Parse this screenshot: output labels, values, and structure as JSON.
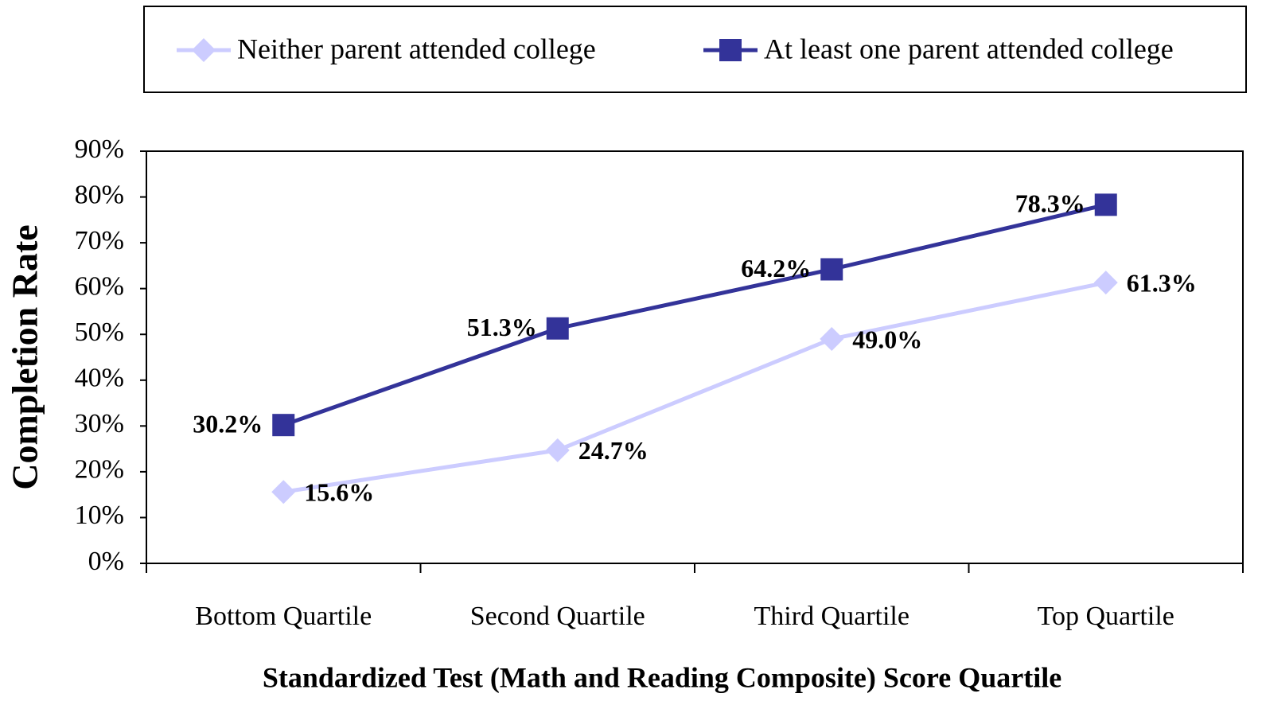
{
  "chart_data": {
    "type": "line",
    "ylabel": "Completion Rate",
    "xlabel": "Standardized Test (Math and Reading Composite) Score Quartile",
    "categories": [
      "Bottom Quartile",
      "Second Quartile",
      "Third Quartile",
      "Top Quartile"
    ],
    "series": [
      {
        "name": "Neither parent attended college",
        "color": "#ccccff",
        "marker": "diamond",
        "values": [
          15.6,
          24.7,
          49.0,
          61.3
        ],
        "value_labels": [
          "15.6%",
          "24.7%",
          "49.0%",
          "61.3%"
        ]
      },
      {
        "name": "At least one parent attended college",
        "color": "#333399",
        "marker": "square",
        "values": [
          30.2,
          51.3,
          64.2,
          78.3
        ],
        "value_labels": [
          "30.2%",
          "51.3%",
          "64.2%",
          "78.3%"
        ]
      }
    ],
    "ylim": [
      0,
      90
    ],
    "yticks": [
      {
        "value": 0,
        "label": "0%"
      },
      {
        "value": 10,
        "label": "10%"
      },
      {
        "value": 20,
        "label": "20%"
      },
      {
        "value": 30,
        "label": "30%"
      },
      {
        "value": 40,
        "label": "40%"
      },
      {
        "value": 50,
        "label": "50%"
      },
      {
        "value": 60,
        "label": "60%"
      },
      {
        "value": 70,
        "label": "70%"
      },
      {
        "value": 80,
        "label": "80%"
      },
      {
        "value": 90,
        "label": "90%"
      }
    ],
    "grid": false,
    "legend": "top"
  }
}
